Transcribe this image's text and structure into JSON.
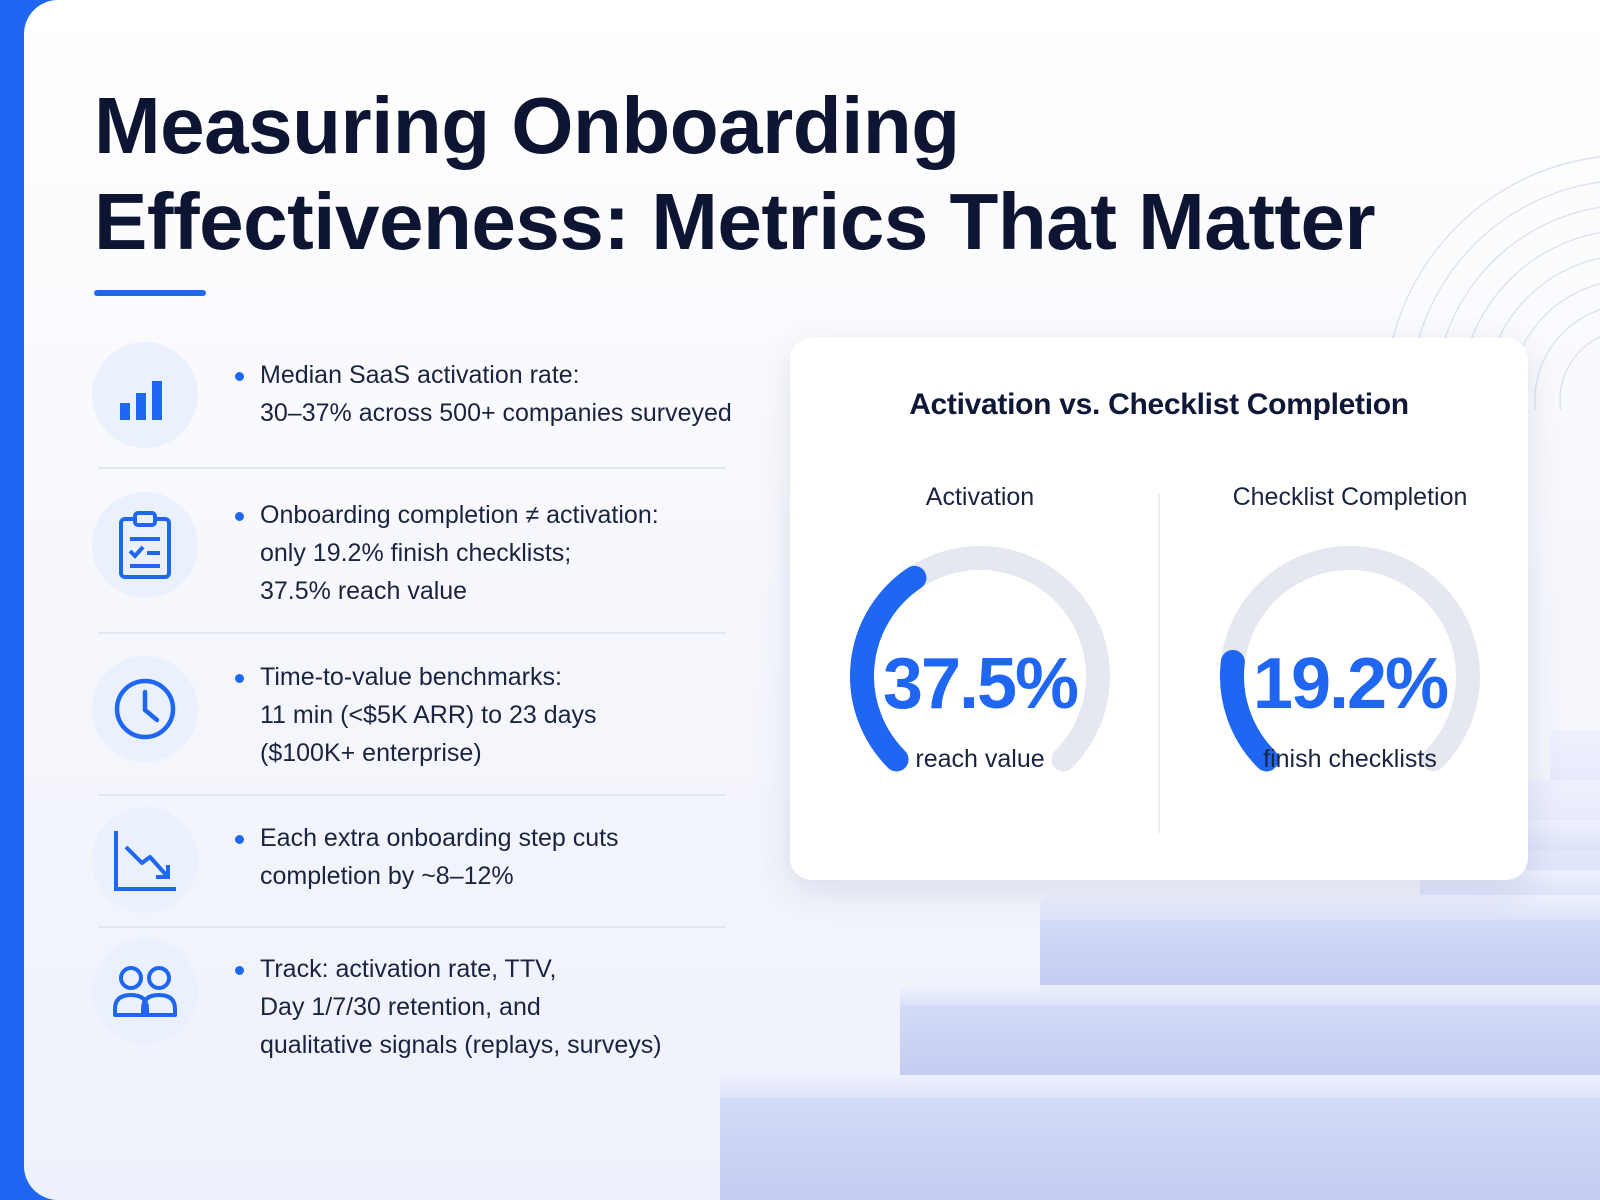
{
  "title": {
    "line1": "Measuring Onboarding",
    "line2": "Effectiveness: Metrics That Matter"
  },
  "metrics": [
    {
      "icon": "bar-chart-icon",
      "lines": [
        "Median SaaS activation rate:",
        "30–37% across 500+ companies surveyed"
      ]
    },
    {
      "icon": "clipboard-checklist-icon",
      "lines": [
        "Onboarding completion ≠ activation:",
        "only 19.2% finish checklists;",
        "37.5% reach value"
      ]
    },
    {
      "icon": "clock-icon",
      "lines": [
        "Time-to-value benchmarks:",
        "11 min (<$5K ARR) to 23 days",
        "($100K+ enterprise)"
      ]
    },
    {
      "icon": "trend-down-icon",
      "lines": [
        "Each extra onboarding step cuts",
        "completion by ~8–12%"
      ]
    },
    {
      "icon": "users-icon",
      "lines": [
        "Track: activation rate, TTV,",
        "Day 1/7/30 retention, and",
        "qualitative signals (replays, surveys)"
      ]
    }
  ],
  "card": {
    "title": "Activation vs. Checklist Completion",
    "gauges": [
      {
        "label": "Activation",
        "value_text": "37.5%",
        "value": 37.5,
        "caption": "reach value"
      },
      {
        "label": "Checklist Completion",
        "value_text": "19.2%",
        "value": 19.2,
        "caption": "finish checklists"
      }
    ]
  },
  "colors": {
    "accent": "#1f66f2",
    "title": "#0d1533",
    "track": "#e6e8ef"
  }
}
